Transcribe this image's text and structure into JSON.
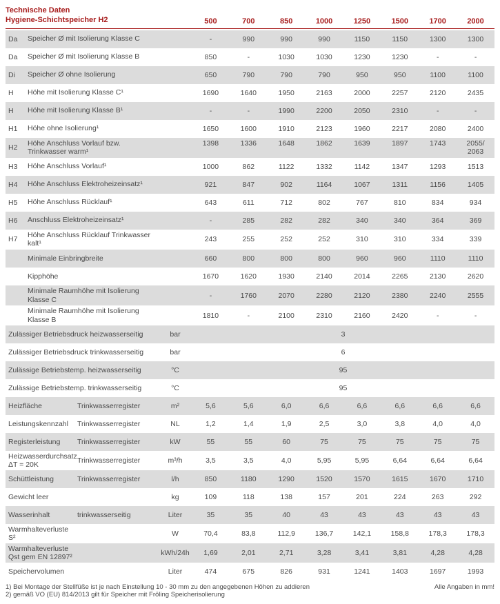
{
  "title_line1": "Technische Daten",
  "title_line2": "Hygiene-Schichtspeicher H2",
  "columns": [
    "500",
    "700",
    "850",
    "1000",
    "1250",
    "1500",
    "1700",
    "2000"
  ],
  "rows": [
    {
      "band": true,
      "code": "Da",
      "desc": "Speicher Ø mit Isolierung Klasse C",
      "unit": "",
      "vals": [
        "-",
        "990",
        "990",
        "990",
        "1150",
        "1150",
        "1300",
        "1300"
      ]
    },
    {
      "band": false,
      "code": "Da",
      "desc": "Speicher Ø mit Isolierung Klasse B",
      "unit": "",
      "vals": [
        "850",
        "-",
        "1030",
        "1030",
        "1230",
        "1230",
        "-",
        "-"
      ]
    },
    {
      "band": true,
      "code": "Di",
      "desc": "Speicher Ø ohne Isolierung",
      "unit": "",
      "vals": [
        "650",
        "790",
        "790",
        "790",
        "950",
        "950",
        "1100",
        "1100"
      ]
    },
    {
      "band": false,
      "code": "H",
      "desc": "Höhe mit Isolierung Klasse C¹",
      "unit": "",
      "vals": [
        "1690",
        "1640",
        "1950",
        "2163",
        "2000",
        "2257",
        "2120",
        "2435"
      ]
    },
    {
      "band": true,
      "code": "H",
      "desc": "Höhe mit Isolierung Klasse B¹",
      "unit": "",
      "vals": [
        "-",
        "-",
        "1990",
        "2200",
        "2050",
        "2310",
        "-",
        "-"
      ]
    },
    {
      "band": false,
      "code": "H1",
      "desc": "Höhe ohne Isolierung¹",
      "unit": "",
      "vals": [
        "1650",
        "1600",
        "1910",
        "2123",
        "1960",
        "2217",
        "2080",
        "2400"
      ]
    },
    {
      "band": true,
      "code": "H2",
      "desc": "Höhe Anschluss Vorlauf bzw. Trinkwasser warm¹",
      "unit": "",
      "vals": [
        "1398",
        "1336",
        "1648",
        "1862",
        "1639",
        "1897",
        "1743",
        "2055/\n2063"
      ]
    },
    {
      "band": false,
      "code": "H3",
      "desc": "Höhe Anschluss Vorlauf¹",
      "unit": "",
      "vals": [
        "1000",
        "862",
        "1122",
        "1332",
        "1142",
        "1347",
        "1293",
        "1513"
      ]
    },
    {
      "band": true,
      "code": "H4",
      "desc": "Höhe Anschluss Elektroheizeinsatz¹",
      "unit": "",
      "vals": [
        "921",
        "847",
        "902",
        "1164",
        "1067",
        "1311",
        "1156",
        "1405"
      ]
    },
    {
      "band": false,
      "code": "H5",
      "desc": "Höhe Anschluss Rücklauf¹",
      "unit": "",
      "vals": [
        "643",
        "611",
        "712",
        "802",
        "767",
        "810",
        "834",
        "934"
      ]
    },
    {
      "band": true,
      "code": "H6",
      "desc": "Anschluss Elektroheizeinsatz¹",
      "unit": "",
      "vals": [
        "-",
        "285",
        "282",
        "282",
        "340",
        "340",
        "364",
        "369"
      ]
    },
    {
      "band": false,
      "code": "H7",
      "desc": "Höhe Anschluss Rücklauf Trinkwasser kalt¹",
      "unit": "",
      "vals": [
        "243",
        "255",
        "252",
        "252",
        "310",
        "310",
        "334",
        "339"
      ]
    },
    {
      "band": true,
      "code": "",
      "desc": "Minimale Einbringbreite",
      "unit": "",
      "vals": [
        "660",
        "800",
        "800",
        "800",
        "960",
        "960",
        "1110",
        "1110"
      ]
    },
    {
      "band": false,
      "code": "",
      "desc": "Kipphöhe",
      "unit": "",
      "vals": [
        "1670",
        "1620",
        "1930",
        "2140",
        "2014",
        "2265",
        "2130",
        "2620"
      ]
    },
    {
      "band": true,
      "code": "",
      "desc": "Minimale Raumhöhe mit Isolierung Klasse C",
      "unit": "",
      "vals": [
        "-",
        "1760",
        "2070",
        "2280",
        "2120",
        "2380",
        "2240",
        "2555"
      ]
    },
    {
      "band": false,
      "code": "",
      "desc": "Minimale Raumhöhe mit Isolierung Klasse B",
      "unit": "",
      "vals": [
        "1810",
        "-",
        "2100",
        "2310",
        "2160",
        "2420",
        "-",
        "-"
      ]
    }
  ],
  "span_rows": [
    {
      "band": true,
      "desc": "Zulässiger Betriebsdruck heizwasserseitig",
      "unit": "bar",
      "val": "3"
    },
    {
      "band": false,
      "desc": "Zulässiger Betriebsdruck trinkwasserseitig",
      "unit": "bar",
      "val": "6"
    },
    {
      "band": true,
      "desc": "Zulässige Betriebstemp.  heizwasserseitig",
      "unit": "°C",
      "val": "95"
    },
    {
      "band": false,
      "desc": "Zulässige Betriebstemp.  trinkwasserseitig",
      "unit": "°C",
      "val": "95"
    }
  ],
  "rows2": [
    {
      "band": true,
      "desc": "Heizfläche",
      "desc2": "Trinkwasserregister",
      "unit": "m²",
      "vals": [
        "5,6",
        "5,6",
        "6,0",
        "6,6",
        "6,6",
        "6,6",
        "6,6",
        "6,6"
      ]
    },
    {
      "band": false,
      "desc": "Leistungskennzahl",
      "desc2": "Trinkwasserregister",
      "unit": "NL",
      "vals": [
        "1,2",
        "1,4",
        "1,9",
        "2,5",
        "3,0",
        "3,8",
        "4,0",
        "4,0"
      ]
    },
    {
      "band": true,
      "desc": "Registerleistung",
      "desc2": "Trinkwasserregister",
      "unit": "kW",
      "vals": [
        "55",
        "55",
        "60",
        "75",
        "75",
        "75",
        "75",
        "75"
      ]
    },
    {
      "band": false,
      "desc": "Heizwasserdurchsatz ΔT = 20K",
      "desc2": "Trinkwasserregister",
      "unit": "m³/h",
      "vals": [
        "3,5",
        "3,5",
        "4,0",
        "5,95",
        "5,95",
        "6,64",
        "6,64",
        "6,64"
      ]
    },
    {
      "band": true,
      "desc": "Schüttleistung",
      "desc2": "Trinkwasserregister",
      "unit": "l/h",
      "vals": [
        "850",
        "1180",
        "1290",
        "1520",
        "1570",
        "1615",
        "1670",
        "1710"
      ]
    },
    {
      "band": false,
      "desc": "Gewicht leer",
      "desc2": "",
      "unit": "kg",
      "vals": [
        "109",
        "118",
        "138",
        "157",
        "201",
        "224",
        "263",
        "292"
      ]
    },
    {
      "band": true,
      "desc": "Wasserinhalt",
      "desc2": "trinkwasserseitig",
      "unit": "Liter",
      "vals": [
        "35",
        "35",
        "40",
        "43",
        "43",
        "43",
        "43",
        "43"
      ]
    },
    {
      "band": false,
      "desc": "Warmhalteverluste S²",
      "desc2": "",
      "unit": "W",
      "vals": [
        "70,4",
        "83,8",
        "112,9",
        "136,7",
        "142,1",
        "158,8",
        "178,3",
        "178,3"
      ]
    },
    {
      "band": true,
      "desc": "Warmhalteverluste Qst gem EN 12897²",
      "desc2": "",
      "unit": "kWh/24h",
      "vals": [
        "1,69",
        "2,01",
        "2,71",
        "3,28",
        "3,41",
        "3,81",
        "4,28",
        "4,28"
      ]
    },
    {
      "band": false,
      "desc": "Speichervolumen",
      "desc2": "",
      "unit": "Liter",
      "vals": [
        "474",
        "675",
        "826",
        "931",
        "1241",
        "1403",
        "1697",
        "1993"
      ]
    }
  ],
  "footnote1": "1) Bei Montage der Stellfüße ist je nach Einstellung 10 - 30 mm zu den angegebenen Höhen zu addieren",
  "footnote2": "2) gemäß VO (EU) 814/2013 gilt für Speicher mit Fröling Speicherisolierung",
  "foot_right": "Alle Angaben in mm!"
}
